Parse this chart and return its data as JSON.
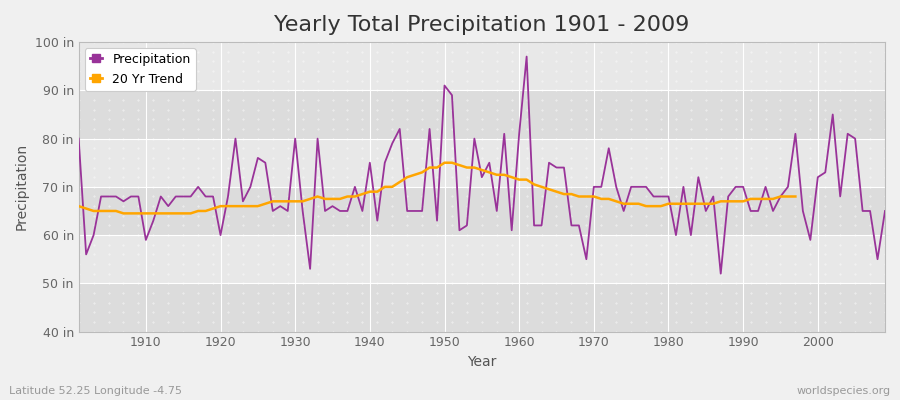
{
  "title": "Yearly Total Precipitation 1901 - 2009",
  "xlabel": "Year",
  "ylabel": "Precipitation",
  "years": [
    1901,
    1902,
    1903,
    1904,
    1905,
    1906,
    1907,
    1908,
    1909,
    1910,
    1911,
    1912,
    1913,
    1914,
    1915,
    1916,
    1917,
    1918,
    1919,
    1920,
    1921,
    1922,
    1923,
    1924,
    1925,
    1926,
    1927,
    1928,
    1929,
    1930,
    1931,
    1932,
    1933,
    1934,
    1935,
    1936,
    1937,
    1938,
    1939,
    1940,
    1941,
    1942,
    1943,
    1944,
    1945,
    1946,
    1947,
    1948,
    1949,
    1950,
    1951,
    1952,
    1953,
    1954,
    1955,
    1956,
    1957,
    1958,
    1959,
    1960,
    1961,
    1962,
    1963,
    1964,
    1965,
    1966,
    1967,
    1968,
    1969,
    1970,
    1971,
    1972,
    1973,
    1974,
    1975,
    1976,
    1977,
    1978,
    1979,
    1980,
    1981,
    1982,
    1983,
    1984,
    1985,
    1986,
    1987,
    1988,
    1989,
    1990,
    1991,
    1992,
    1993,
    1994,
    1995,
    1996,
    1997,
    1998,
    1999,
    2000,
    2001,
    2002,
    2003,
    2004,
    2005,
    2006,
    2007,
    2008,
    2009
  ],
  "precip": [
    80,
    56,
    60,
    68,
    68,
    68,
    67,
    68,
    68,
    59,
    63,
    68,
    66,
    68,
    68,
    68,
    70,
    68,
    68,
    60,
    68,
    80,
    67,
    70,
    76,
    75,
    65,
    66,
    65,
    80,
    65,
    53,
    80,
    65,
    66,
    65,
    65,
    70,
    65,
    75,
    63,
    75,
    79,
    82,
    65,
    65,
    65,
    82,
    63,
    91,
    89,
    61,
    62,
    80,
    72,
    75,
    65,
    81,
    61,
    81,
    97,
    62,
    62,
    75,
    74,
    74,
    62,
    62,
    55,
    70,
    70,
    78,
    70,
    65,
    70,
    70,
    70,
    68,
    68,
    68,
    60,
    70,
    60,
    72,
    65,
    68,
    52,
    68,
    70,
    70,
    65,
    65,
    70,
    65,
    68,
    70,
    81,
    65,
    59,
    72,
    73,
    85,
    68,
    81,
    80,
    65,
    65,
    55,
    65
  ],
  "trend": [
    66,
    65.5,
    65,
    65,
    65,
    65,
    64.5,
    64.5,
    64.5,
    64.5,
    64.5,
    64.5,
    64.5,
    64.5,
    64.5,
    64.5,
    65,
    65,
    65.5,
    66,
    66,
    66,
    66,
    66,
    66,
    66.5,
    67,
    67,
    67,
    67,
    67,
    67.5,
    68,
    67.5,
    67.5,
    67.5,
    68,
    68,
    68.5,
    69,
    69,
    70,
    70,
    71,
    72,
    72.5,
    73,
    74,
    74,
    75,
    75,
    74.5,
    74,
    74,
    73.5,
    73,
    72.5,
    72.5,
    72,
    71.5,
    71.5,
    70.5,
    70,
    69.5,
    69,
    68.5,
    68.5,
    68,
    68,
    68,
    67.5,
    67.5,
    67,
    66.5,
    66.5,
    66.5,
    66,
    66,
    66,
    66.5,
    66.5,
    66.5,
    66.5,
    66.5,
    66.5,
    66.5,
    67,
    67,
    67,
    67,
    67.5,
    67.5,
    67.5,
    67.5,
    68,
    68,
    68
  ],
  "precip_color": "#993399",
  "trend_color": "#FFA500",
  "fig_bg_color": "#F0F0F0",
  "plot_bg_light": "#E8E8E8",
  "plot_bg_dark": "#DCDCDC",
  "ylim": [
    40,
    100
  ],
  "yticks": [
    40,
    50,
    60,
    70,
    80,
    90,
    100
  ],
  "ytick_labels": [
    "40 in",
    "50 in",
    "60 in",
    "70 in",
    "80 in",
    "90 in",
    "100 in"
  ],
  "xlim_left": 1901,
  "xlim_right": 2009,
  "xticks": [
    1910,
    1920,
    1930,
    1940,
    1950,
    1960,
    1970,
    1980,
    1990,
    2000
  ],
  "bottom_left_text": "Latitude 52.25 Longitude -4.75",
  "bottom_right_text": "worldspecies.org",
  "legend_labels": [
    "Precipitation",
    "20 Yr Trend"
  ],
  "title_fontsize": 16,
  "axis_label_fontsize": 10,
  "tick_fontsize": 9,
  "legend_fontsize": 9,
  "precip_linewidth": 1.3,
  "trend_linewidth": 1.8
}
